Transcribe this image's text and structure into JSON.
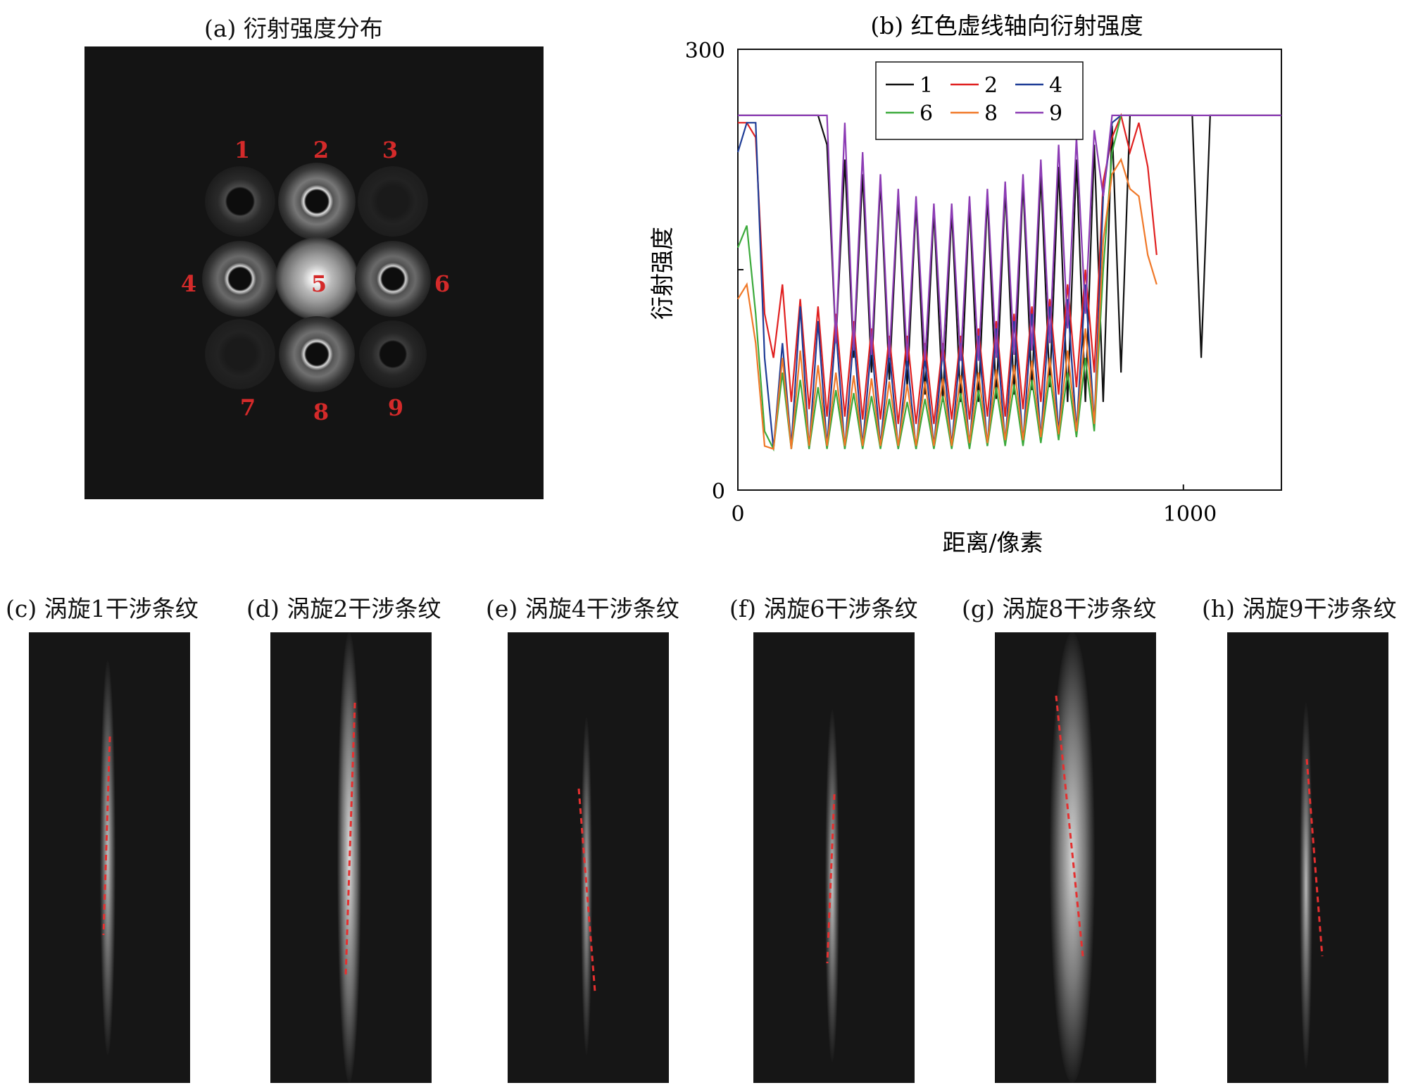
{
  "panel_a": {
    "caption": "(a) 衍射强度分布",
    "labels": [
      "1",
      "2",
      "3",
      "4",
      "5",
      "6",
      "7",
      "8",
      "9"
    ]
  },
  "chart_data": {
    "type": "line",
    "title": "(b) 红色虚线轴向衍射强度",
    "xlabel": "距离/像素",
    "ylabel": "衍射强度",
    "xlim": [
      0,
      1220
    ],
    "ylim": [
      0,
      300
    ],
    "x_ticks": [
      "0",
      "1000"
    ],
    "y_ticks": [
      "0",
      "300"
    ],
    "legend_position": "top-center",
    "series": [
      {
        "name": "1",
        "color": "#111111",
        "x": [
          0,
          20,
          40,
          60,
          80,
          100,
          120,
          140,
          160,
          180,
          200,
          220,
          240,
          260,
          280,
          300,
          320,
          340,
          360,
          380,
          400,
          420,
          440,
          460,
          480,
          500,
          520,
          540,
          560,
          580,
          600,
          620,
          640,
          660,
          680,
          700,
          720,
          740,
          760,
          780,
          800,
          820,
          840,
          860,
          880,
          900,
          920,
          940,
          960,
          980,
          1000,
          1020,
          1040,
          1060,
          1080,
          1100,
          1120,
          1140,
          1160,
          1180,
          1200,
          1220
        ],
        "y": [
          255,
          255,
          255,
          255,
          255,
          255,
          255,
          255,
          255,
          255,
          235,
          100,
          225,
          90,
          215,
          80,
          210,
          75,
          200,
          70,
          195,
          65,
          190,
          60,
          190,
          60,
          195,
          60,
          200,
          62,
          205,
          65,
          210,
          68,
          215,
          70,
          220,
          60,
          225,
          60,
          235,
          60,
          248,
          80,
          255,
          255,
          255,
          255,
          255,
          255,
          255,
          255,
          90,
          255,
          255,
          255,
          255,
          255,
          255,
          255,
          255,
          255
        ]
      },
      {
        "name": "2",
        "color": "#e02020",
        "x": [
          0,
          20,
          40,
          60,
          80,
          100,
          120,
          140,
          160,
          180,
          200,
          220,
          240,
          260,
          280,
          300,
          320,
          340,
          360,
          380,
          400,
          420,
          440,
          460,
          480,
          500,
          520,
          540,
          560,
          580,
          600,
          620,
          640,
          660,
          680,
          700,
          720,
          740,
          760,
          780,
          800,
          820,
          840,
          860,
          880,
          900,
          920,
          940
        ],
        "y": [
          250,
          250,
          240,
          120,
          90,
          140,
          60,
          130,
          55,
          125,
          50,
          120,
          50,
          115,
          48,
          110,
          48,
          105,
          45,
          105,
          45,
          100,
          45,
          100,
          48,
          105,
          48,
          110,
          50,
          115,
          50,
          120,
          55,
          125,
          60,
          130,
          65,
          140,
          70,
          150,
          80,
          210,
          240,
          255,
          230,
          250,
          220,
          160
        ]
      },
      {
        "name": "4",
        "color": "#1e3c96",
        "x": [
          0,
          20,
          40,
          60,
          80,
          100,
          120,
          140,
          160,
          180,
          200,
          220,
          240,
          260,
          280,
          300,
          320,
          340,
          360,
          380,
          400,
          420,
          440,
          460,
          480,
          500,
          520,
          540,
          560,
          580,
          600,
          620,
          640,
          660,
          680,
          700,
          720,
          740,
          760,
          780,
          800,
          820,
          840,
          860,
          880
        ],
        "y": [
          230,
          250,
          250,
          90,
          28,
          100,
          30,
          125,
          28,
          115,
          30,
          110,
          28,
          105,
          30,
          100,
          30,
          95,
          28,
          90,
          28,
          90,
          30,
          95,
          30,
          100,
          30,
          105,
          30,
          110,
          32,
          115,
          32,
          120,
          35,
          125,
          38,
          130,
          40,
          140,
          45,
          200,
          250,
          255,
          255
        ]
      },
      {
        "name": "6",
        "color": "#3caa3c",
        "x": [
          0,
          20,
          40,
          60,
          80,
          100,
          120,
          140,
          160,
          180,
          200,
          220,
          240,
          260,
          280,
          300,
          320,
          340,
          360,
          380,
          400,
          420,
          440,
          460,
          480,
          500,
          520,
          540,
          560,
          580,
          600,
          620,
          640,
          660,
          680,
          700,
          720,
          740,
          760,
          780,
          800,
          820,
          840,
          860,
          880,
          900
        ],
        "y": [
          165,
          180,
          120,
          40,
          28,
          80,
          28,
          75,
          28,
          70,
          28,
          68,
          28,
          66,
          28,
          64,
          28,
          62,
          28,
          60,
          28,
          62,
          28,
          64,
          28,
          66,
          28,
          68,
          30,
          70,
          30,
          72,
          30,
          75,
          32,
          78,
          34,
          80,
          36,
          90,
          40,
          150,
          230,
          255,
          255,
          255
        ]
      },
      {
        "name": "8",
        "color": "#f07828",
        "x": [
          0,
          20,
          40,
          60,
          80,
          100,
          120,
          140,
          160,
          180,
          200,
          220,
          240,
          260,
          280,
          300,
          320,
          340,
          360,
          380,
          400,
          420,
          440,
          460,
          480,
          500,
          520,
          540,
          560,
          580,
          600,
          620,
          640,
          660,
          680,
          700,
          720,
          740,
          760,
          780,
          800,
          820,
          840,
          860,
          880,
          900,
          920,
          940
        ],
        "y": [
          130,
          140,
          100,
          30,
          28,
          90,
          28,
          95,
          30,
          85,
          30,
          80,
          30,
          78,
          30,
          76,
          30,
          74,
          30,
          72,
          30,
          74,
          30,
          76,
          30,
          78,
          32,
          80,
          32,
          82,
          34,
          85,
          34,
          88,
          36,
          90,
          38,
          95,
          40,
          110,
          45,
          170,
          215,
          225,
          205,
          200,
          160,
          140
        ]
      },
      {
        "name": "9",
        "color": "#8c3cb4",
        "x": [
          0,
          20,
          40,
          60,
          80,
          100,
          120,
          140,
          160,
          180,
          200,
          220,
          240,
          260,
          280,
          300,
          320,
          340,
          360,
          380,
          400,
          420,
          440,
          460,
          480,
          500,
          520,
          540,
          560,
          580,
          600,
          620,
          640,
          660,
          680,
          700,
          720,
          740,
          760,
          780,
          800,
          820,
          840,
          860,
          880,
          900,
          920,
          940,
          960,
          980,
          1000,
          1020,
          1040,
          1060,
          1080,
          1100,
          1120,
          1140,
          1160,
          1180,
          1200,
          1220
        ],
        "y": [
          255,
          255,
          255,
          255,
          255,
          255,
          255,
          255,
          255,
          255,
          255,
          100,
          250,
          95,
          230,
          92,
          215,
          90,
          205,
          88,
          200,
          88,
          195,
          88,
          195,
          88,
          200,
          88,
          205,
          90,
          210,
          92,
          215,
          95,
          225,
          100,
          235,
          110,
          240,
          120,
          245,
          200,
          255,
          255,
          255,
          255,
          255,
          255,
          255,
          255,
          255,
          255,
          255,
          255,
          255,
          255,
          255,
          255,
          255,
          255,
          255,
          255
        ]
      }
    ]
  },
  "fringes": [
    {
      "caption": "(c) 涡旋1干涉条纹"
    },
    {
      "caption": "(d) 涡旋2干涉条纹"
    },
    {
      "caption": "(e) 涡旋4干涉条纹"
    },
    {
      "caption": "(f) 涡旋6干涉条纹"
    },
    {
      "caption": "(g) 涡旋8干涉条纹"
    },
    {
      "caption": "(h) 涡旋9干涉条纹"
    }
  ]
}
